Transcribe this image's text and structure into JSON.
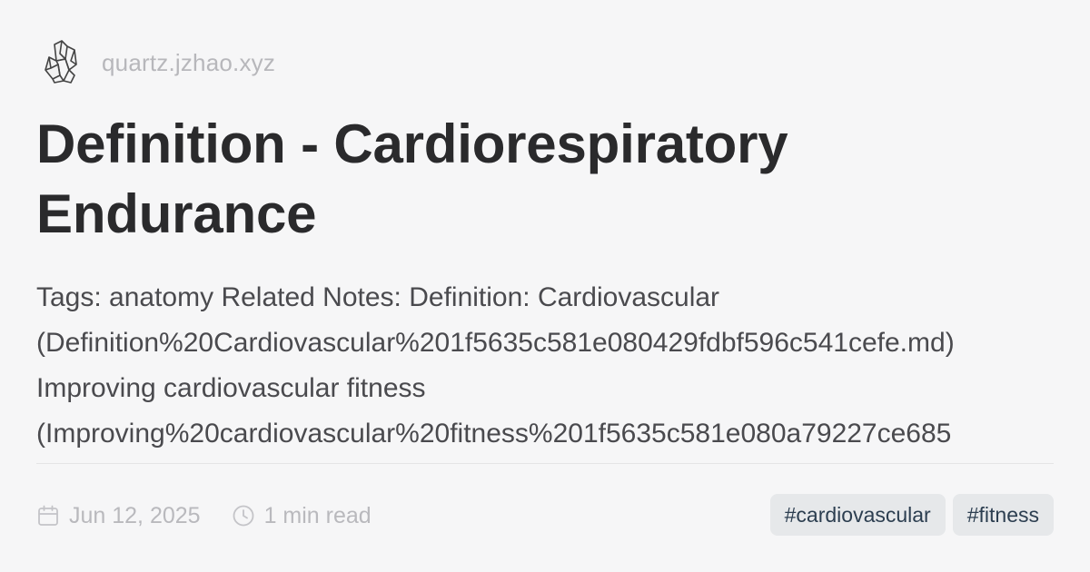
{
  "site": {
    "name": "quartz.jzhao.xyz",
    "logo_icon": "crystal-logo-icon"
  },
  "page": {
    "title_line1": "Definition - Cardiorespiratory",
    "title_line2": "Endurance",
    "description_lines": [
      "Tags: anatomy Related Notes: Definition: Cardiovascular",
      "(Definition%20Cardiovascular%201f5635c581e080429fdbf596c541cefe.md)",
      "Improving cardiovascular fitness",
      "(Improving%20cardiovascular%20fitness%201f5635c581e080a79227ce685"
    ]
  },
  "meta": {
    "date": "Jun 12, 2025",
    "date_icon": "calendar-icon",
    "reading_time": "1 min read",
    "reading_time_icon": "clock-icon"
  },
  "tags": [
    "#cardiovascular",
    "#fitness"
  ],
  "colors": {
    "background": "#f6f6f7",
    "title": "#2a2a2c",
    "muted": "#b9b9bd",
    "tag_bg": "#e6e8ea",
    "tag_text": "#2c3e50"
  }
}
